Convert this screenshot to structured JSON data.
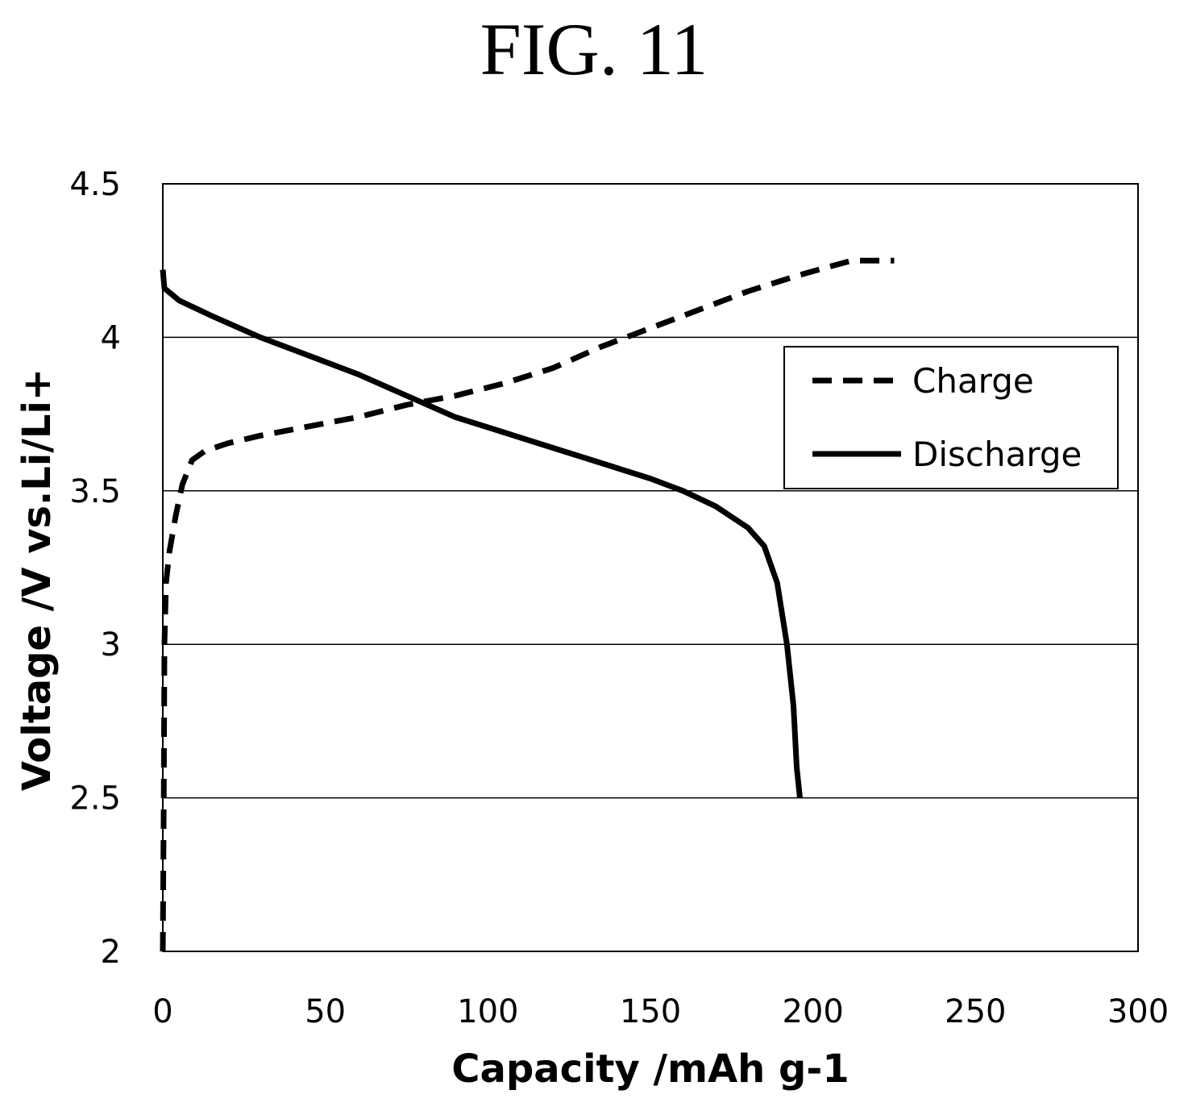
{
  "figure_title": "FIG. 11",
  "chart_data": {
    "type": "line",
    "xlabel": "Capacity /mAh g-1",
    "ylabel": "Voltage /V vs.Li/Li+",
    "xlim": [
      0,
      300
    ],
    "ylim": [
      2,
      4.5
    ],
    "x_ticks": [
      "0",
      "50",
      "100",
      "150",
      "200",
      "250",
      "300"
    ],
    "y_ticks": [
      "2",
      "2.5",
      "3",
      "3.5",
      "4",
      "4.5"
    ],
    "grid": "horizontal",
    "legend_position": "upper-right",
    "series": [
      {
        "name": "Charge",
        "style": "dashed",
        "color": "#000000",
        "points": [
          [
            0,
            2.0
          ],
          [
            0.3,
            2.5
          ],
          [
            0.5,
            3.0
          ],
          [
            1,
            3.2
          ],
          [
            2,
            3.3
          ],
          [
            4,
            3.42
          ],
          [
            6,
            3.52
          ],
          [
            9,
            3.6
          ],
          [
            13,
            3.63
          ],
          [
            20,
            3.655
          ],
          [
            30,
            3.68
          ],
          [
            45,
            3.71
          ],
          [
            60,
            3.74
          ],
          [
            75,
            3.78
          ],
          [
            90,
            3.81
          ],
          [
            105,
            3.85
          ],
          [
            120,
            3.9
          ],
          [
            135,
            3.97
          ],
          [
            150,
            4.03
          ],
          [
            165,
            4.09
          ],
          [
            180,
            4.15
          ],
          [
            195,
            4.2
          ],
          [
            205,
            4.23
          ],
          [
            212,
            4.25
          ],
          [
            218,
            4.25
          ],
          [
            225,
            4.25
          ]
        ]
      },
      {
        "name": "Discharge",
        "style": "solid",
        "color": "#000000",
        "points": [
          [
            0,
            4.22
          ],
          [
            0.5,
            4.16
          ],
          [
            5,
            4.12
          ],
          [
            15,
            4.07
          ],
          [
            30,
            4.0
          ],
          [
            45,
            3.94
          ],
          [
            60,
            3.88
          ],
          [
            75,
            3.81
          ],
          [
            90,
            3.74
          ],
          [
            105,
            3.69
          ],
          [
            120,
            3.64
          ],
          [
            135,
            3.59
          ],
          [
            150,
            3.54
          ],
          [
            160,
            3.5
          ],
          [
            170,
            3.45
          ],
          [
            180,
            3.38
          ],
          [
            185,
            3.32
          ],
          [
            189,
            3.2
          ],
          [
            192,
            3.0
          ],
          [
            194,
            2.8
          ],
          [
            195,
            2.6
          ],
          [
            196,
            2.5
          ]
        ]
      }
    ]
  }
}
